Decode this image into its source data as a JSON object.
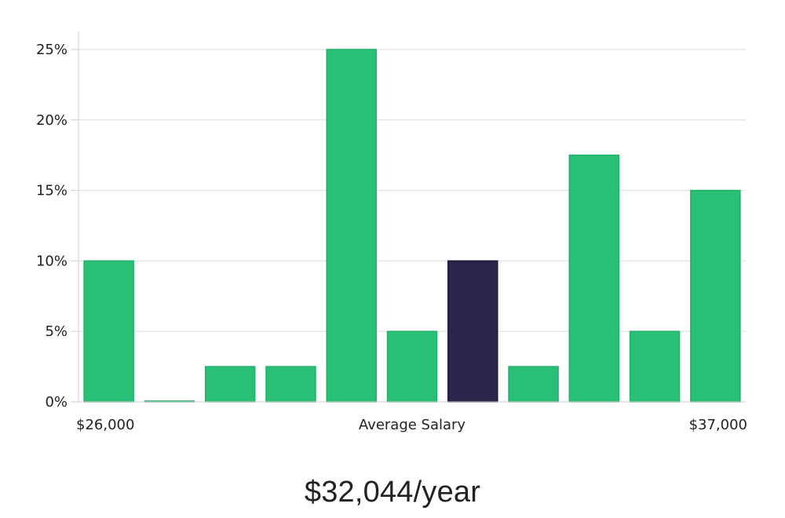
{
  "chart_data": {
    "type": "bar",
    "title": "",
    "x_axis": {
      "left_label": "$26,000",
      "center_label": "Average Salary",
      "right_label": "$37,000"
    },
    "ylim": [
      0,
      26
    ],
    "y_ticks": [
      0,
      5,
      10,
      15,
      20,
      25
    ],
    "y_tick_labels": [
      "0%",
      "5%",
      "10%",
      "15%",
      "20%",
      "25%"
    ],
    "values": [
      10,
      0.05,
      2.5,
      2.5,
      25,
      5,
      10,
      2.5,
      17.5,
      5,
      15
    ],
    "highlight_index": 6,
    "grid": true,
    "colors": {
      "bar": "#29bf77",
      "bar_stroke": "#22b06c",
      "highlight": "#29264a",
      "highlight_stroke": "#1c1a3d",
      "grid": "#dddddd",
      "axis": "#cfcfcf"
    }
  },
  "summary": {
    "salary_text": "$32,044/year"
  }
}
